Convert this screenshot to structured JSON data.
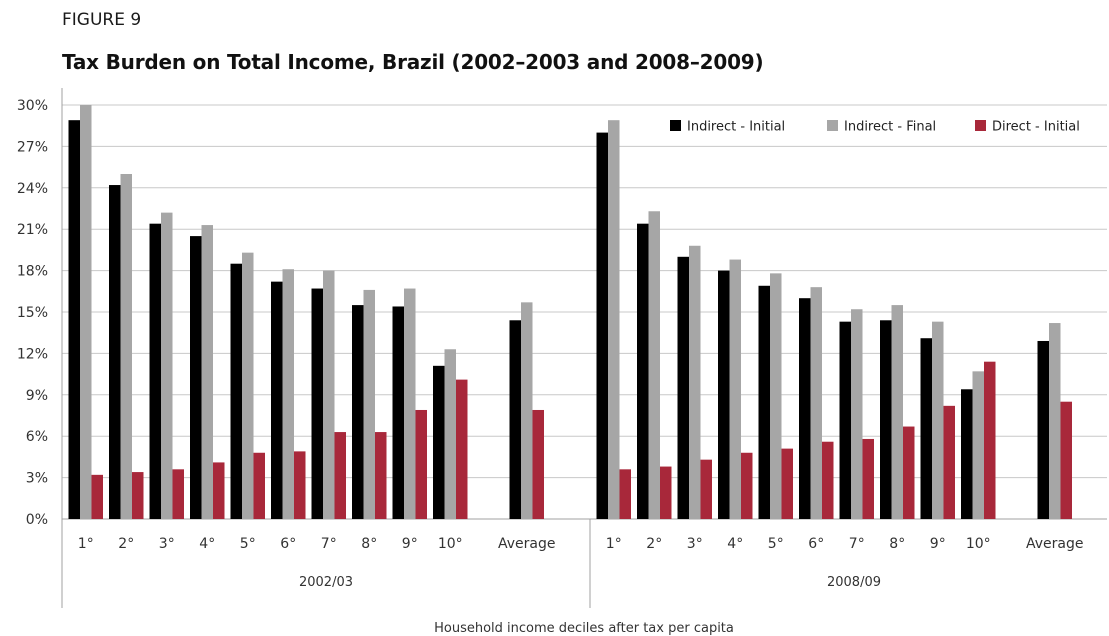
{
  "figure_label": "FIGURE 9",
  "chart_data": {
    "type": "bar",
    "title": "Tax Burden on Total Income, Brazil (2002–2003 and 2008–2009)",
    "xlabel": "Household income deciles after tax per capita",
    "ylabel": "",
    "ylim": [
      0,
      30
    ],
    "yticks": [
      "0%",
      "3%",
      "6%",
      "9%",
      "12%",
      "15%",
      "18%",
      "21%",
      "24%",
      "27%",
      "30%"
    ],
    "grid": true,
    "legend_position": "top-right",
    "categories": [
      "1°",
      "2°",
      "3°",
      "4°",
      "5°",
      "6°",
      "7°",
      "8°",
      "9°",
      "10°",
      "Average"
    ],
    "series_meta": [
      {
        "name": "Indirect - Initial",
        "color": "#000000"
      },
      {
        "name": "Indirect - Final",
        "color": "#a6a6a6"
      },
      {
        "name": "Direct - Initial",
        "color": "#a8283a"
      }
    ],
    "groups": [
      {
        "label": "2002/03",
        "series": [
          {
            "name": "Indirect - Initial",
            "values": [
              28.9,
              24.2,
              21.4,
              20.5,
              18.5,
              17.2,
              16.7,
              15.5,
              15.4,
              11.1,
              14.4
            ]
          },
          {
            "name": "Indirect - Final",
            "values": [
              30.0,
              25.0,
              22.2,
              21.3,
              19.3,
              18.1,
              18.0,
              16.6,
              16.7,
              12.3,
              15.7
            ]
          },
          {
            "name": "Direct - Initial",
            "values": [
              3.2,
              3.4,
              3.6,
              4.1,
              4.8,
              4.9,
              6.3,
              6.3,
              7.9,
              10.1,
              7.9
            ]
          }
        ]
      },
      {
        "label": "2008/09",
        "series": [
          {
            "name": "Indirect - Initial",
            "values": [
              28.0,
              21.4,
              19.0,
              18.0,
              16.9,
              16.0,
              14.3,
              14.4,
              13.1,
              9.4,
              12.9
            ]
          },
          {
            "name": "Indirect - Final",
            "values": [
              28.9,
              22.3,
              19.8,
              18.8,
              17.8,
              16.8,
              15.2,
              15.5,
              14.3,
              10.7,
              14.2
            ]
          },
          {
            "name": "Direct - Initial",
            "values": [
              3.6,
              3.8,
              4.3,
              4.8,
              5.1,
              5.6,
              5.8,
              6.7,
              8.2,
              11.4,
              8.5
            ]
          }
        ]
      }
    ]
  }
}
